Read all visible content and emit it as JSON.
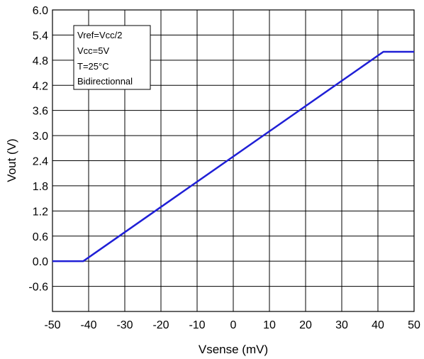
{
  "chart_data": {
    "type": "line",
    "xlabel": "Vsense (mV)",
    "ylabel": "Vout (V)",
    "xlim": [
      -50,
      50
    ],
    "ylim": [
      -1.2,
      6.0
    ],
    "x_ticks": [
      "-50",
      "-40",
      "-30",
      "-20",
      "-10",
      "0",
      "10",
      "20",
      "30",
      "40",
      "50"
    ],
    "y_ticks": [
      "6.0",
      "5.4",
      "4.8",
      "4.2",
      "3.6",
      "3.0",
      "2.4",
      "1.8",
      "1.2",
      "0.6",
      "0.0",
      "-0.6"
    ],
    "grid": true,
    "series": [
      {
        "color": "#1f1fd6",
        "x": [
          -50,
          -41.5,
          41.5,
          50
        ],
        "y": [
          0.0,
          0.0,
          5.0,
          5.0
        ]
      }
    ],
    "annotation_lines": [
      "Vref=Vcc/2",
      "Vcc=5V",
      "T=25°C",
      "Bidirectionnal"
    ]
  }
}
